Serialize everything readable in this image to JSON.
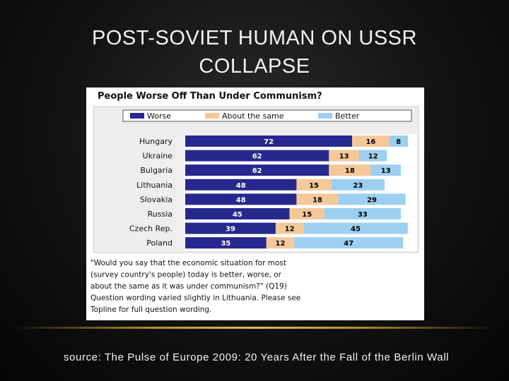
{
  "slide": {
    "title_line1": "POST-SOVIET HUMAN ON USSR",
    "title_line2": "COLLAPSE",
    "source": "source: The Pulse of Europe 2009: 20 Years After the Fall of the Berlin Wall"
  },
  "chart_data": {
    "type": "bar",
    "stacked": true,
    "orientation": "horizontal",
    "title": "People Worse Off Than Under Communism?",
    "categories": [
      "Hungary",
      "Ukraine",
      "Bulgaria",
      "Lithuania",
      "Slovakia",
      "Russia",
      "Czech Rep.",
      "Poland"
    ],
    "series": [
      {
        "name": "Worse",
        "color": "#27288e",
        "label_color": "#ffffff",
        "values": [
          72,
          62,
          62,
          48,
          48,
          45,
          39,
          35
        ]
      },
      {
        "name": "About the same",
        "color": "#f5c89a",
        "label_color": "#000000",
        "values": [
          16,
          13,
          18,
          15,
          18,
          15,
          12,
          12
        ]
      },
      {
        "name": "Better",
        "color": "#9ccff0",
        "label_color": "#000000",
        "values": [
          8,
          12,
          13,
          23,
          29,
          33,
          45,
          47
        ]
      }
    ],
    "legend_position": "top",
    "xlim": [
      0,
      100
    ],
    "footnote_lines": [
      "\"Would you say that the economic situation for most",
      "(survey country's people) today is better, worse, or",
      "about the same as it was under communism?\" (Q19)",
      "Question wording varied slightly in Lithuania. Please see",
      "Topline for full question wording."
    ]
  }
}
